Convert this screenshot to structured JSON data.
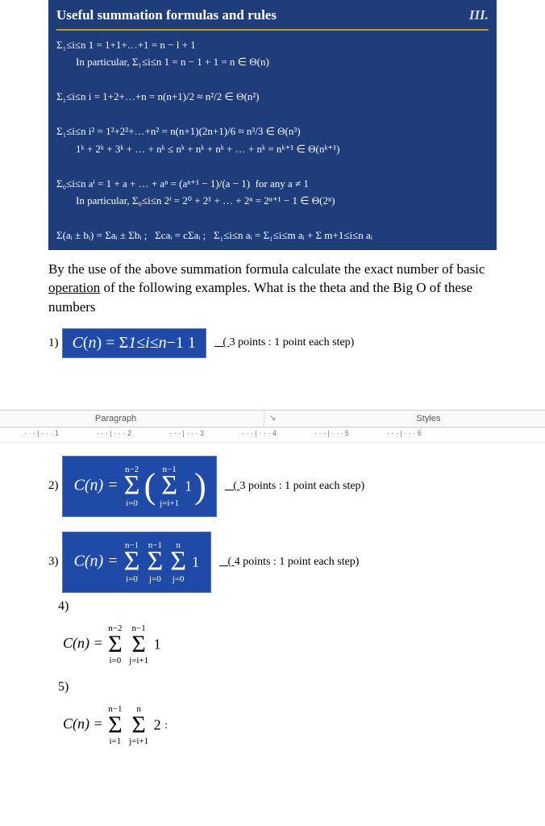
{
  "box": {
    "title": "Useful summation formulas and rules",
    "roman": "III.",
    "lines": [
      {
        "text": "Σ₁≤i≤n 1 = 1+1+…+1 = n − l + 1",
        "cls": ""
      },
      {
        "text": "In particular, Σ₁≤i≤n 1 = n − 1 + 1 = n ∈ Θ(n)",
        "cls": "indent"
      },
      {
        "text": "",
        "cls": ""
      },
      {
        "text": "Σ₁≤i≤n i = 1+2+…+n = n(n+1)/2 ≈ n²/2 ∈ Θ(n²)",
        "cls": ""
      },
      {
        "text": "",
        "cls": ""
      },
      {
        "text": "Σ₁≤i≤n i² = 1²+2²+…+n² = n(n+1)(2n+1)/6 ≈ n³/3 ∈ Θ(n³)",
        "cls": ""
      },
      {
        "text": "1ᵏ + 2ᵏ + 3ᵏ + … + nᵏ ≤ nᵏ + nᵏ + nᵏ + … + nᵏ = nᵏ⁺¹ ∈ Θ(nᵏ⁺¹)",
        "cls": "indent"
      },
      {
        "text": "",
        "cls": ""
      },
      {
        "text": "Σ₀≤i≤n aⁱ = 1 + a + … + aⁿ = (aⁿ⁺¹ − 1)/(a − 1)  for any a ≠ 1",
        "cls": ""
      },
      {
        "text": "In particular, Σ₀≤i≤n 2ⁱ = 2⁰ + 2¹ + … + 2ⁿ = 2ⁿ⁺¹ − 1 ∈ Θ(2ⁿ)",
        "cls": "indent"
      },
      {
        "text": "",
        "cls": ""
      },
      {
        "text": "Σ(aᵢ ± bᵢ) = Σaᵢ ± Σbᵢ ;   Σcaᵢ = cΣaᵢ ;   Σ₁≤i≤n aᵢ = Σ₁≤i≤m aᵢ + Σ m+1≤i≤n aᵢ",
        "cls": ""
      }
    ]
  },
  "question": "By the use of the above summation formula calculate the exact number of basic operation of the following examples. What is the theta and the Big O of these numbers",
  "q1": {
    "num": "1)",
    "formula": "C(n) = Σ1≤i≤n−1 1",
    "points_pre": "   ( ",
    "points": "3 points : 1 point each step)"
  },
  "ribbon": {
    "paragraph": "Paragraph",
    "styles": "Styles"
  },
  "ruler_marks": [
    "1",
    "2",
    "3",
    "4",
    "5",
    "6"
  ],
  "q2": {
    "num": "2)",
    "lhs": "C(n) = ",
    "outer_top": "n−2",
    "outer_bot": "i=0",
    "inner_top": "n−1",
    "inner_bot": "j=i+1",
    "term": "1",
    "points_pre": "   ( ",
    "points": "3 points : 1 point each step)"
  },
  "q3": {
    "num": "3)",
    "lhs": "C(n) = ",
    "s1_top": "n−1",
    "s1_bot": "i=0",
    "s2_top": "n−1",
    "s2_bot": "j=0",
    "s3_top": "n",
    "s3_bot": "j=0",
    "term": "1",
    "points_pre": "   ( ",
    "points": "4 points : 1 point each step)"
  },
  "q4": {
    "num": "4)",
    "lhs": "C(n) = ",
    "s1_top": "n−2",
    "s1_bot": "i=0",
    "s2_top": "n−1",
    "s2_bot": "j=i+1",
    "term": "1"
  },
  "q5": {
    "num": "5)",
    "lhs": "C(n) = ",
    "s1_top": "n−1",
    "s1_bot": "i=1",
    "s2_top": "n",
    "s2_bot": "j=i+1",
    "term": "2"
  },
  "colors": {
    "box_bg": "#1f3d7a",
    "formula_bg": "#1f4aa8",
    "accent": "#cc9900"
  }
}
